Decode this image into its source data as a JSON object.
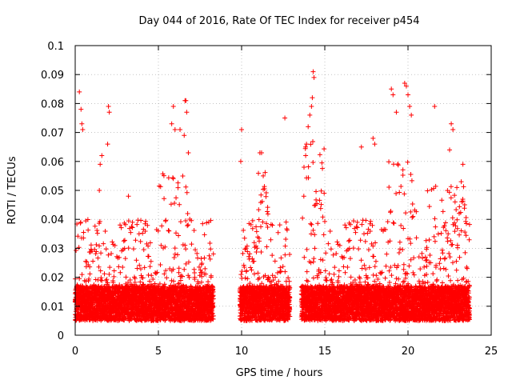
{
  "chart_data": {
    "type": "scatter",
    "title": "Day 044 of 2016, Rate Of TEC Index for receiver p454",
    "xlabel": "GPS time / hours",
    "ylabel": "ROTI / TECUs",
    "xlim": [
      0,
      25
    ],
    "ylim": [
      0,
      0.1
    ],
    "x_ticks": [
      "0",
      "5",
      "10",
      "15",
      "20",
      "25"
    ],
    "y_ticks": [
      "0",
      "0.01",
      "0.02",
      "0.03",
      "0.04",
      "0.05",
      "0.06",
      "0.07",
      "0.08",
      "0.09",
      "0.1"
    ],
    "x_tick_values": [
      0,
      5,
      10,
      15,
      20,
      25
    ],
    "y_tick_values": [
      0,
      0.01,
      0.02,
      0.03,
      0.04,
      0.05,
      0.06,
      0.07,
      0.08,
      0.09,
      0.1
    ],
    "grid": true,
    "marker": "+",
    "marker_color": "#ff0000",
    "data_segments": [
      {
        "start": 0.0,
        "end": 8.3
      },
      {
        "start": 9.9,
        "end": 12.9
      },
      {
        "start": 13.6,
        "end": 23.7
      }
    ],
    "series": [
      {
        "name": "ROTI",
        "x": [
          0.25,
          0.35,
          0.4,
          0.45,
          1.5,
          2.0,
          2.05,
          1.95,
          1.45,
          1.6,
          3.2,
          5.8,
          5.9,
          6.0,
          6.6,
          6.65,
          6.7,
          6.8,
          6.55,
          6.3,
          9.95,
          10.0,
          11.1,
          11.2,
          11.3,
          12.6,
          13.75,
          13.85,
          13.9,
          14.2,
          14.25,
          14.3,
          14.35,
          14.1,
          14.0,
          17.2,
          17.9,
          18.0,
          19.0,
          19.1,
          19.3,
          19.8,
          19.9,
          20.0,
          20.1,
          20.2,
          21.6,
          22.6,
          22.7,
          22.5,
          23.3,
          23.2
        ],
        "y": [
          0.084,
          0.078,
          0.073,
          0.071,
          0.059,
          0.079,
          0.077,
          0.066,
          0.05,
          0.062,
          0.048,
          0.073,
          0.079,
          0.071,
          0.081,
          0.081,
          0.077,
          0.063,
          0.069,
          0.071,
          0.06,
          0.071,
          0.063,
          0.063,
          0.055,
          0.075,
          0.058,
          0.062,
          0.066,
          0.079,
          0.082,
          0.091,
          0.089,
          0.076,
          0.072,
          0.065,
          0.068,
          0.066,
          0.085,
          0.083,
          0.077,
          0.087,
          0.086,
          0.083,
          0.079,
          0.076,
          0.079,
          0.073,
          0.071,
          0.064,
          0.059,
          0.053
        ]
      }
    ]
  }
}
